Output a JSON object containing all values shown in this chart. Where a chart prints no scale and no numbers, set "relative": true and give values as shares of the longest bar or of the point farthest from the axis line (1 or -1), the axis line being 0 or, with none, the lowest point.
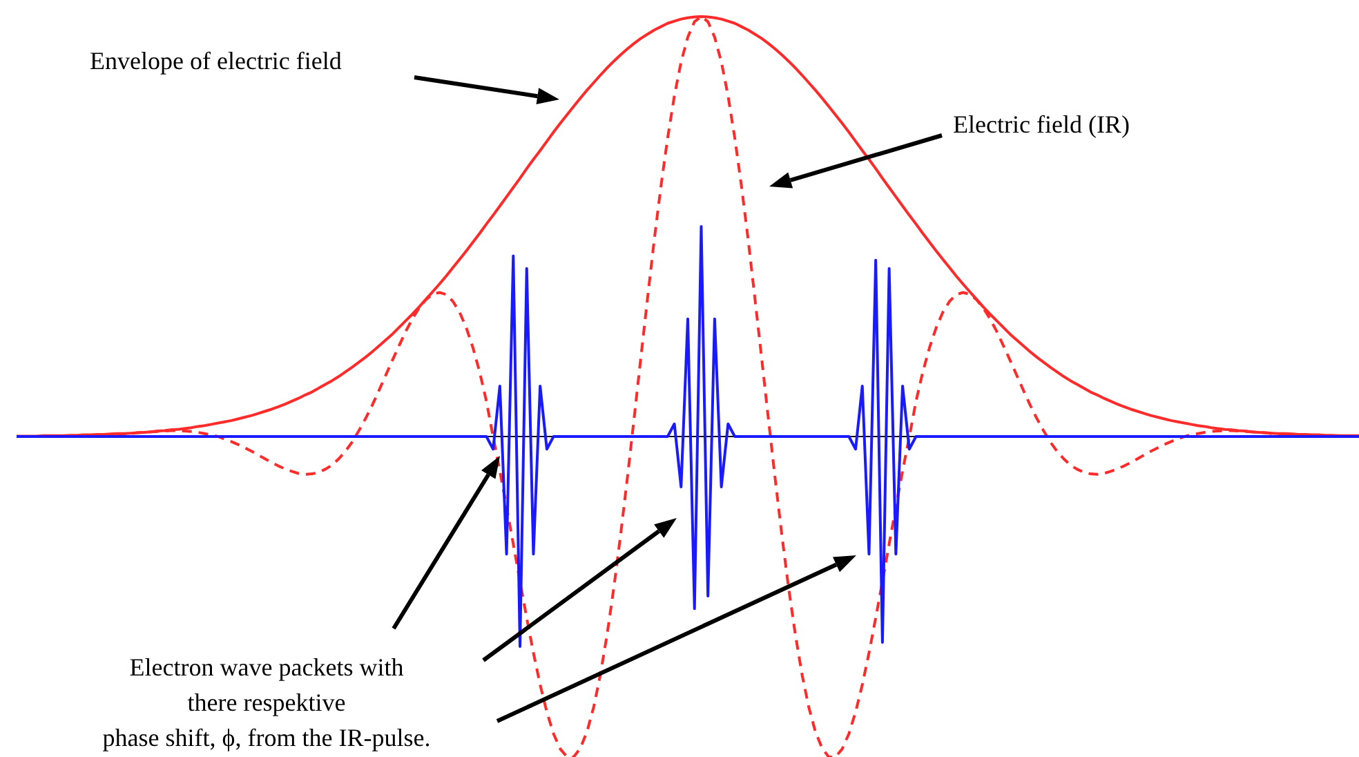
{
  "chart_data": {
    "type": "line",
    "relative": true,
    "categories": [
      null,
      null,
      null,
      null,
      null,
      null,
      null,
      null,
      null,
      null,
      null,
      null,
      null,
      null,
      null,
      null,
      null,
      null,
      null,
      null,
      null,
      null,
      null,
      null,
      null,
      null,
      null,
      null,
      null,
      null,
      null,
      null,
      null,
      null,
      null,
      null,
      null,
      null,
      null,
      null,
      null,
      null,
      null,
      null,
      null,
      null,
      null,
      null,
      null,
      null,
      null,
      null,
      null,
      null,
      null,
      null,
      null,
      null,
      null,
      null,
      null,
      null,
      null,
      null,
      null,
      null,
      null,
      null,
      null,
      null,
      null,
      null,
      null,
      null,
      null,
      null,
      null,
      null,
      null,
      null,
      null,
      null,
      null,
      null,
      null,
      null,
      null,
      null,
      null,
      null,
      null,
      null,
      null,
      null,
      null,
      null,
      null,
      null,
      null,
      null,
      null,
      null,
      null,
      null,
      null,
      null,
      null,
      null,
      null,
      null,
      null,
      null,
      null,
      null,
      null,
      null,
      null,
      null,
      null,
      null,
      null,
      null,
      null,
      null,
      null,
      null,
      null,
      null,
      null,
      null,
      null,
      null,
      null,
      null,
      null,
      null,
      null,
      null,
      null,
      null,
      null,
      null,
      null,
      null,
      null,
      null,
      null,
      null,
      null,
      null,
      null,
      null,
      null,
      null,
      null,
      null,
      null,
      null,
      null,
      null,
      null,
      null,
      null,
      null,
      null,
      null,
      null,
      null,
      null,
      null,
      null,
      null,
      null,
      null,
      null,
      null,
      null,
      null,
      null,
      null,
      null,
      null,
      null,
      null,
      null,
      null,
      null,
      null,
      null,
      null,
      null,
      null,
      null,
      null,
      null,
      null,
      null,
      null,
      null,
      null,
      null
    ],
    "series": [
      {
        "color": "#ff2a2a",
        "line_style": "solid",
        "values": [
          0.001,
          0.001,
          0.001,
          0.001,
          0.002,
          0.002,
          0.002,
          0.002,
          0.003,
          0.003,
          0.004,
          0.004,
          0.005,
          0.005,
          0.006,
          0.007,
          0.007,
          0.008,
          0.009,
          0.01,
          0.011,
          0.013,
          0.014,
          0.016,
          0.017,
          0.019,
          0.021,
          0.024,
          0.026,
          0.029,
          0.032,
          0.035,
          0.038,
          0.042,
          0.046,
          0.05,
          0.055,
          0.06,
          0.065,
          0.071,
          0.077,
          0.084,
          0.091,
          0.099,
          0.106,
          0.115,
          0.124,
          0.133,
          0.143,
          0.154,
          0.165,
          0.177,
          0.189,
          0.202,
          0.216,
          0.23,
          0.244,
          0.26,
          0.276,
          0.292,
          0.309,
          0.327,
          0.345,
          0.363,
          0.382,
          0.402,
          0.422,
          0.442,
          0.463,
          0.484,
          0.506,
          0.527,
          0.549,
          0.571,
          0.593,
          0.615,
          0.638,
          0.66,
          0.681,
          0.703,
          0.725,
          0.746,
          0.766,
          0.786,
          0.806,
          0.825,
          0.843,
          0.861,
          0.878,
          0.894,
          0.909,
          0.923,
          0.936,
          0.948,
          0.958,
          0.968,
          0.976,
          0.984,
          0.989,
          0.994,
          0.997,
          0.999,
          1,
          0.999,
          0.997,
          0.994,
          0.989,
          0.984,
          0.976,
          0.968,
          0.958,
          0.948,
          0.936,
          0.923,
          0.909,
          0.894,
          0.878,
          0.861,
          0.843,
          0.825,
          0.806,
          0.786,
          0.766,
          0.746,
          0.725,
          0.703,
          0.681,
          0.66,
          0.638,
          0.615,
          0.593,
          0.571,
          0.549,
          0.527,
          0.506,
          0.484,
          0.463,
          0.442,
          0.422,
          0.402,
          0.382,
          0.363,
          0.345,
          0.327,
          0.309,
          0.292,
          0.276,
          0.26,
          0.244,
          0.23,
          0.216,
          0.202,
          0.189,
          0.177,
          0.165,
          0.154,
          0.143,
          0.133,
          0.124,
          0.115,
          0.106,
          0.099,
          0.091,
          0.084,
          0.077,
          0.071,
          0.065,
          0.06,
          0.055,
          0.05,
          0.046,
          0.042,
          0.038,
          0.035,
          0.032,
          0.029,
          0.026,
          0.024,
          0.021,
          0.019,
          0.017,
          0.016,
          0.014,
          0.013,
          0.011,
          0.01,
          0.009,
          0.008,
          0.007,
          0.007,
          0.006,
          0.005,
          0.005,
          0.004,
          0.004,
          0.003,
          0.003,
          0.002,
          0.002,
          0.002,
          0.002
        ]
      },
      {
        "color": "#ff2a2a",
        "line_style": "dashed",
        "values": [
          0,
          0,
          0,
          0,
          0,
          0,
          0,
          0,
          0,
          0,
          0,
          0.001,
          0.002,
          0.003,
          0.004,
          0.005,
          0.006,
          0.007,
          0.009,
          0.01,
          0.011,
          0.012,
          0.013,
          0.014,
          0.014,
          0.013,
          0.012,
          0.01,
          0.007,
          0.004,
          0,
          -0.006,
          -0.012,
          -0.019,
          -0.027,
          -0.035,
          -0.044,
          -0.053,
          -0.062,
          -0.07,
          -0.077,
          -0.083,
          -0.088,
          -0.09,
          -0.089,
          -0.085,
          -0.078,
          -0.068,
          -0.053,
          -0.035,
          -0.013,
          0.014,
          0.043,
          0.075,
          0.11,
          0.146,
          0.182,
          0.217,
          0.251,
          0.281,
          0.307,
          0.326,
          0.339,
          0.343,
          0.338,
          0.322,
          0.296,
          0.259,
          0.211,
          0.153,
          0.084,
          -0.001,
          -0.082,
          -0.168,
          -0.256,
          -0.345,
          -0.432,
          -0.515,
          -0.591,
          -0.656,
          -0.708,
          -0.744,
          -0.763,
          -0.763,
          -0.742,
          -0.702,
          -0.643,
          -0.565,
          -0.469,
          -0.358,
          -0.233,
          -0.098,
          0.043,
          0.187,
          0.329,
          0.468,
          0.596,
          0.711,
          0.811,
          0.892,
          0.951,
          0.988,
          1,
          0.988,
          0.951,
          0.892,
          0.811,
          0.711,
          0.596,
          0.468,
          0.329,
          0.187,
          0.043,
          -0.098,
          -0.233,
          -0.358,
          -0.469,
          -0.565,
          -0.643,
          -0.702,
          -0.742,
          -0.763,
          -0.763,
          -0.744,
          -0.708,
          -0.656,
          -0.591,
          -0.515,
          -0.432,
          -0.345,
          -0.256,
          -0.168,
          -0.082,
          -0.001,
          0.084,
          0.153,
          0.211,
          0.259,
          0.296,
          0.322,
          0.338,
          0.343,
          0.339,
          0.326,
          0.307,
          0.281,
          0.251,
          0.217,
          0.182,
          0.146,
          0.11,
          0.075,
          0.043,
          0.014,
          -0.013,
          -0.035,
          -0.053,
          -0.068,
          -0.078,
          -0.085,
          -0.089,
          -0.09,
          -0.088,
          -0.083,
          -0.077,
          -0.07,
          -0.062,
          -0.053,
          -0.044,
          -0.035,
          -0.027,
          -0.019,
          -0.012,
          -0.006,
          0,
          0.004,
          0.007,
          0.01,
          0.012,
          0.013,
          0.014,
          0.014,
          0.013,
          0.012,
          0.011,
          0.01,
          0.009,
          0.007,
          0.006,
          0.005,
          0.004,
          0.003,
          0.002,
          0.001,
          0,
          0,
          0,
          0,
          0,
          0,
          0
        ]
      },
      {
        "color": "#1a1aff",
        "line_style": "solid",
        "values": [
          0,
          0,
          0,
          0,
          0,
          0,
          0,
          0,
          0,
          0,
          0,
          0,
          0,
          0,
          0,
          0,
          0,
          0,
          0,
          0,
          0,
          0,
          0,
          0,
          0,
          0,
          0,
          0,
          0,
          0,
          0,
          0,
          0,
          0,
          0,
          0,
          0,
          0,
          0,
          0,
          0,
          0,
          0,
          0,
          0,
          0,
          0,
          0,
          0,
          0,
          0,
          0,
          0,
          0,
          0,
          0,
          0,
          0,
          0,
          0,
          0,
          0,
          0,
          0,
          0,
          0,
          0,
          0,
          0,
          0,
          0,
          -0.03,
          0.12,
          -0.28,
          0.43,
          -0.5,
          0.4,
          -0.28,
          0.12,
          -0.03,
          0,
          0,
          0,
          0,
          0,
          0,
          0,
          0,
          0,
          0,
          0,
          0,
          0,
          0,
          0,
          0,
          0,
          0,
          0.03,
          -0.12,
          0.28,
          -0.41,
          0.5,
          -0.38,
          0.28,
          -0.12,
          0.03,
          0,
          0,
          0,
          0,
          0,
          0,
          0,
          0,
          0,
          0,
          0,
          0,
          0,
          0,
          0,
          0,
          0,
          0,
          -0.03,
          0.12,
          -0.28,
          0.42,
          -0.49,
          0.4,
          -0.28,
          0.12,
          -0.03,
          0,
          0,
          0,
          0,
          0,
          0,
          0,
          0,
          0,
          0,
          0,
          0,
          0,
          0,
          0,
          0,
          0,
          0,
          0,
          0,
          0,
          0,
          0,
          0,
          0,
          0,
          0,
          0,
          0,
          0,
          0,
          0,
          0,
          0,
          0,
          0,
          0,
          0,
          0,
          0,
          0,
          0,
          0,
          0,
          0,
          0,
          0,
          0,
          0,
          0,
          0,
          0,
          0,
          0,
          0,
          0,
          0,
          0,
          0,
          0,
          0,
          0,
          0,
          0,
          0,
          0,
          0
        ]
      }
    ],
    "annotations": [
      "Envelope of electric field",
      "Electric field (IR)",
      "Electron wave packets with\nthere respektive\nphase shift, ϕ, from the IR-pulse."
    ]
  }
}
